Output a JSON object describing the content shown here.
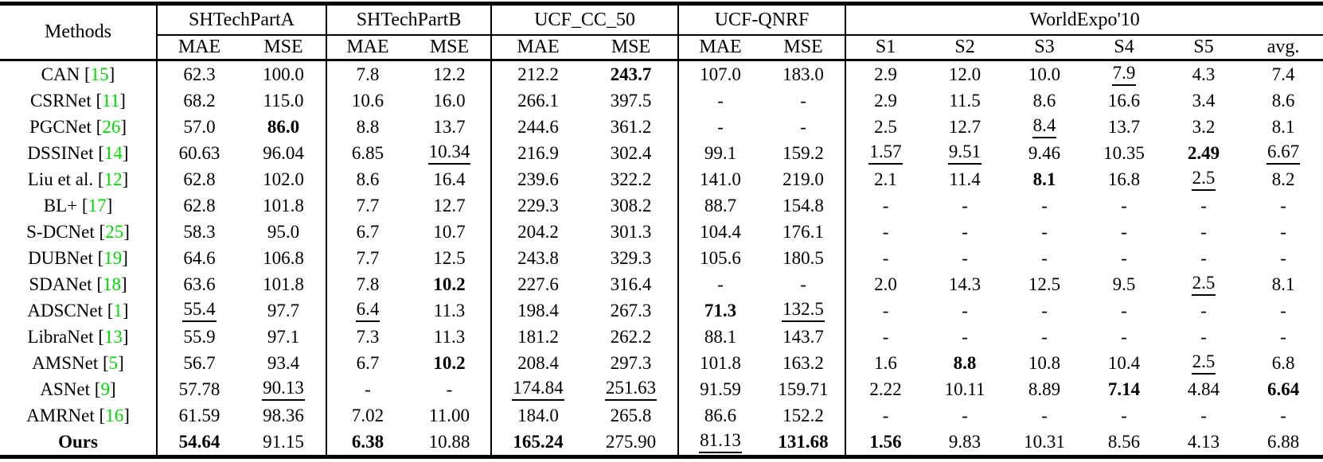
{
  "table": {
    "methods_header": "Methods",
    "citation": {
      "open": " [",
      "close": "]",
      "color": "#00d900"
    },
    "groups": [
      {
        "label": "SHTechPartA",
        "cols": [
          "MAE",
          "MSE"
        ]
      },
      {
        "label": "SHTechPartB",
        "cols": [
          "MAE",
          "MSE"
        ]
      },
      {
        "label": "UCF_CC_50",
        "cols": [
          "MAE",
          "MSE"
        ]
      },
      {
        "label": "UCF-QNRF",
        "cols": [
          "MAE",
          "MSE"
        ]
      },
      {
        "label": "WorldExpo'10",
        "cols": [
          "S1",
          "S2",
          "S3",
          "S4",
          "S5",
          "avg."
        ]
      }
    ],
    "rows": [
      {
        "method": "CAN",
        "cite": "15",
        "cells": [
          "62.3",
          "100.0",
          "7.8",
          "12.2",
          "212.2",
          {
            "v": "243.7",
            "b": 1
          },
          "107.0",
          "183.0",
          "2.9",
          "12.0",
          "10.0",
          {
            "v": "7.9",
            "u": 1
          },
          "4.3",
          "7.4"
        ]
      },
      {
        "method": "CSRNet",
        "cite": "11",
        "cells": [
          "68.2",
          "115.0",
          "10.6",
          "16.0",
          "266.1",
          "397.5",
          "-",
          "-",
          "2.9",
          "11.5",
          "8.6",
          "16.6",
          "3.4",
          "8.6"
        ]
      },
      {
        "method": "PGCNet",
        "cite": "26",
        "cells": [
          "57.0",
          {
            "v": "86.0",
            "b": 1
          },
          "8.8",
          "13.7",
          "244.6",
          "361.2",
          "-",
          "-",
          "2.5",
          "12.7",
          {
            "v": "8.4",
            "u": 1
          },
          "13.7",
          "3.2",
          "8.1"
        ]
      },
      {
        "method": "DSSINet",
        "cite": "14",
        "cells": [
          "60.63",
          "96.04",
          "6.85",
          {
            "v": "10.34",
            "u": 1
          },
          "216.9",
          "302.4",
          "99.1",
          "159.2",
          {
            "v": "1.57",
            "u": 1
          },
          {
            "v": "9.51",
            "u": 1
          },
          "9.46",
          "10.35",
          {
            "v": "2.49",
            "b": 1
          },
          {
            "v": "6.67",
            "u": 1
          }
        ]
      },
      {
        "method": "Liu et al.",
        "cite": "12",
        "cells": [
          "62.8",
          "102.0",
          "8.6",
          "16.4",
          "239.6",
          "322.2",
          "141.0",
          "219.0",
          "2.1",
          "11.4",
          {
            "v": "8.1",
            "b": 1
          },
          "16.8",
          {
            "v": "2.5",
            "u": 1
          },
          "8.2"
        ]
      },
      {
        "method": "BL+",
        "cite": "17",
        "cells": [
          "62.8",
          "101.8",
          "7.7",
          "12.7",
          "229.3",
          "308.2",
          "88.7",
          "154.8",
          "-",
          "-",
          "-",
          "-",
          "-",
          "-"
        ]
      },
      {
        "method": "S-DCNet",
        "cite": "25",
        "cells": [
          "58.3",
          "95.0",
          "6.7",
          "10.7",
          "204.2",
          "301.3",
          "104.4",
          "176.1",
          "-",
          "-",
          "-",
          "-",
          "-",
          "-"
        ]
      },
      {
        "method": "DUBNet",
        "cite": "19",
        "cells": [
          "64.6",
          "106.8",
          "7.7",
          "12.5",
          "243.8",
          "329.3",
          "105.6",
          "180.5",
          "-",
          "-",
          "-",
          "-",
          "-",
          "-"
        ]
      },
      {
        "method": "SDANet",
        "cite": "18",
        "cells": [
          "63.6",
          "101.8",
          "7.8",
          {
            "v": "10.2",
            "b": 1
          },
          "227.6",
          "316.4",
          "-",
          "-",
          "2.0",
          "14.3",
          "12.5",
          "9.5",
          {
            "v": "2.5",
            "u": 1
          },
          "8.1"
        ]
      },
      {
        "method": "ADSCNet",
        "cite": "1",
        "cells": [
          {
            "v": "55.4",
            "u": 1
          },
          "97.7",
          {
            "v": "6.4",
            "u": 1
          },
          "11.3",
          "198.4",
          "267.3",
          {
            "v": "71.3",
            "b": 1
          },
          {
            "v": "132.5",
            "u": 1
          },
          "-",
          "-",
          "-",
          "-",
          "-",
          "-"
        ]
      },
      {
        "method": "LibraNet",
        "cite": "13",
        "cells": [
          "55.9",
          "97.1",
          "7.3",
          "11.3",
          "181.2",
          "262.2",
          "88.1",
          "143.7",
          "-",
          "-",
          "-",
          "-",
          "-",
          "-"
        ]
      },
      {
        "method": "AMSNet",
        "cite": "5",
        "cells": [
          "56.7",
          "93.4",
          "6.7",
          {
            "v": "10.2",
            "b": 1
          },
          "208.4",
          "297.3",
          "101.8",
          "163.2",
          "1.6",
          {
            "v": "8.8",
            "b": 1
          },
          "10.8",
          "10.4",
          {
            "v": "2.5",
            "u": 1
          },
          "6.8"
        ]
      },
      {
        "method": "ASNet",
        "cite": "9",
        "cells": [
          "57.78",
          {
            "v": "90.13",
            "u": 1
          },
          "-",
          "-",
          {
            "v": "174.84",
            "u": 1
          },
          {
            "v": "251.63",
            "u": 1
          },
          "91.59",
          "159.71",
          "2.22",
          "10.11",
          "8.89",
          {
            "v": "7.14",
            "b": 1
          },
          "4.84",
          {
            "v": "6.64",
            "b": 1
          }
        ]
      },
      {
        "method": "AMRNet",
        "cite": "16",
        "cells": [
          "61.59",
          "98.36",
          "7.02",
          "11.00",
          "184.0",
          "265.8",
          "86.6",
          "152.2",
          "-",
          "-",
          "-",
          "-",
          "-",
          "-"
        ]
      },
      {
        "method": "Ours",
        "cite": null,
        "bold": 1,
        "cells": [
          {
            "v": "54.64",
            "b": 1
          },
          "91.15",
          {
            "v": "6.38",
            "b": 1
          },
          "10.88",
          {
            "v": "165.24",
            "b": 1
          },
          "275.90",
          {
            "v": "81.13",
            "u": 1
          },
          {
            "v": "131.68",
            "b": 1
          },
          {
            "v": "1.56",
            "b": 1
          },
          "9.83",
          "10.31",
          "8.56",
          "4.13",
          "6.88"
        ]
      }
    ]
  }
}
